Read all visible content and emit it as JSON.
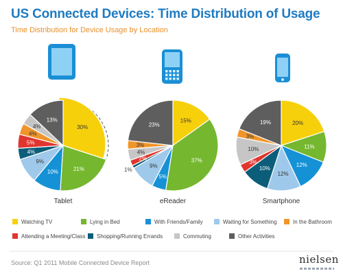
{
  "page": {
    "title": "US Connected Devices: Time Distribution of Usage",
    "subtitle": "Time Distribution for Device Usage by Location",
    "source": "Source: Q1 2011 Mobile Connected Device Report",
    "logo": "nielsen"
  },
  "colors": {
    "Watching TV": "#f7d00c",
    "Lying in Bed": "#75b72e",
    "With Friends/Family": "#1592d6",
    "Waiting for Something": "#9fc9ea",
    "In the Bathroom": "#f0952b",
    "Attending a Meeting/Class": "#e0362f",
    "Shopping/Running Errands": "#0c5d79",
    "Commuting": "#c6c6c6",
    "Other Activities": "#5e5e5f"
  },
  "icons": [
    "tablet-icon",
    "ereader-icon",
    "smartphone-icon"
  ],
  "chart_data": {
    "type": "pie",
    "legend_position": "bottom",
    "categories": [
      "Watching TV",
      "Lying in Bed",
      "With Friends/Family",
      "Waiting for Something",
      "In the Bathroom",
      "Attending a Meeting/Class",
      "Shopping/Running Errands",
      "Commuting",
      "Other Activities"
    ],
    "series": [
      {
        "name": "Tablet",
        "exploded": "Watching TV",
        "slices": [
          {
            "category": "Watching TV",
            "value": 30,
            "label": "30%"
          },
          {
            "category": "Lying in Bed",
            "value": 21,
            "label": "21%"
          },
          {
            "category": "With Friends/Family",
            "value": 10,
            "label": "10%"
          },
          {
            "category": "Waiting for Something",
            "value": 9,
            "label": "9%"
          },
          {
            "category": "Shopping/Running Errands",
            "value": 4,
            "label": "4%"
          },
          {
            "category": "Attending a Meeting/Class",
            "value": 5,
            "label": "5%"
          },
          {
            "category": "In the Bathroom",
            "value": 4,
            "label": "4%"
          },
          {
            "category": "Commuting",
            "value": 4,
            "label": "4%"
          },
          {
            "category": "Other Activities",
            "value": 13,
            "label": "13%"
          }
        ]
      },
      {
        "name": "eReader",
        "slices": [
          {
            "category": "Watching TV",
            "value": 15,
            "label": "15%"
          },
          {
            "category": "Lying in Bed",
            "value": 37,
            "label": "37%"
          },
          {
            "category": "With Friends/Family",
            "value": 5,
            "label": "5%"
          },
          {
            "category": "Waiting for Something",
            "value": 9,
            "label": "9%"
          },
          {
            "category": "Shopping/Running Errands",
            "value": 1,
            "label": "1%"
          },
          {
            "category": "Attending a Meeting/Class",
            "value": 2,
            "label": "2%"
          },
          {
            "category": "Commuting",
            "value": 4,
            "label": "4%"
          },
          {
            "category": "In the Bathroom",
            "value": 3,
            "label": "3%"
          },
          {
            "category": "Other Activities",
            "value": 23,
            "label": "23%"
          }
        ]
      },
      {
        "name": "Smartphone",
        "slices": [
          {
            "category": "Watching TV",
            "value": 20,
            "label": "20%"
          },
          {
            "category": "Lying in Bed",
            "value": 11,
            "label": "11%"
          },
          {
            "category": "With Friends/Family",
            "value": 12,
            "label": "12%"
          },
          {
            "category": "Waiting for Something",
            "value": 12,
            "label": "12%"
          },
          {
            "category": "Shopping/Running Errands",
            "value": 10,
            "label": "10%"
          },
          {
            "category": "Attending a Meeting/Class",
            "value": 3,
            "label": "3%"
          },
          {
            "category": "Commuting",
            "value": 10,
            "label": "10%"
          },
          {
            "category": "In the Bathroom",
            "value": 3,
            "label": "3%"
          },
          {
            "category": "Other Activities",
            "value": 19,
            "label": "19%"
          }
        ]
      }
    ]
  }
}
